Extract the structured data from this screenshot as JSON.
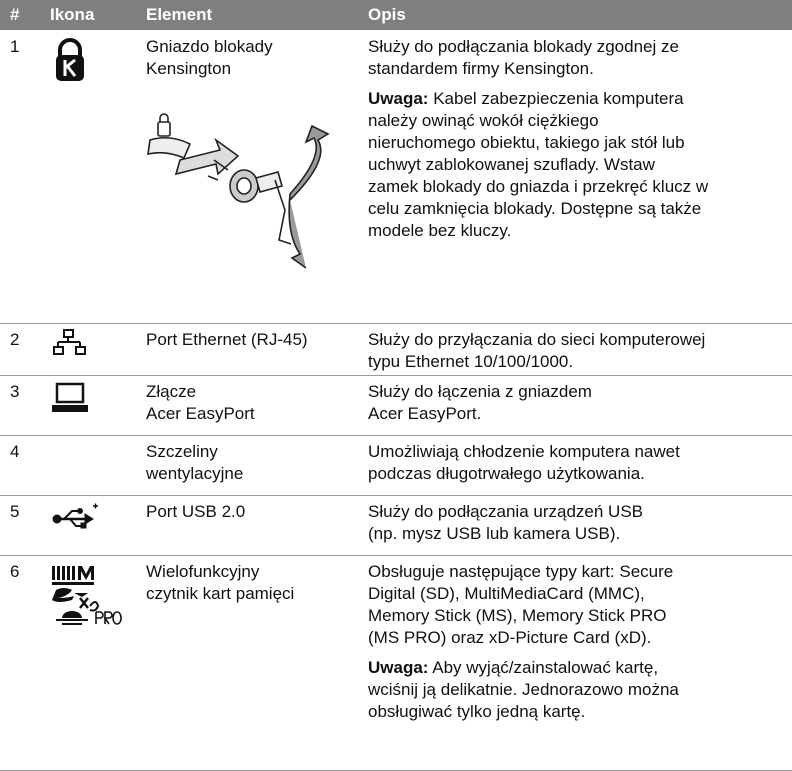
{
  "table": {
    "header": [
      "#",
      "Ikona",
      "Element",
      "Opis"
    ],
    "rows": [
      {
        "number": "1",
        "element": [
          "Gniazdo blokady",
          "Kensington"
        ],
        "description": [
          {
            "lines": [
              "Służy do podłączania blokady zgodnej ze",
              "standardem firmy Kensington."
            ]
          },
          {
            "label": "Uwaga:",
            "lines": [
              " Kabel zabezpieczenia komputera",
              "należy owinąć wokół ciężkiego",
              "nieruchomego obiektu, takiego jak stół lub",
              "uchwyt zablokowanej szuflady. Wstaw",
              "zamek blokady do gniazda i przekręć klucz w",
              "celu zamknięcia blokady. Dostępne są także",
              "modele bez kluczy."
            ]
          }
        ]
      },
      {
        "number": "2",
        "element": [
          "Port Ethernet (RJ-45)"
        ],
        "description": [
          {
            "lines": [
              "Służy do przyłączania do sieci komputerowej",
              "typu Ethernet 10/100/1000."
            ]
          }
        ]
      },
      {
        "number": "3",
        "element": [
          "Złącze",
          "Acer EasyPort"
        ],
        "description": [
          {
            "lines": [
              "Służy do łączenia z gniazdem",
              "Acer EasyPort."
            ]
          }
        ]
      },
      {
        "number": "4",
        "element": [
          "Szczeliny",
          "wentylacyjne"
        ],
        "description": [
          {
            "lines": [
              "Umożliwiają chłodzenie komputera nawet",
              "podczas długotrwałego użytkowania."
            ]
          }
        ]
      },
      {
        "number": "5",
        "element": [
          "Port USB 2.0"
        ],
        "description": [
          {
            "lines": [
              "Służy do podłączania urządzeń USB",
              "(np. mysz USB lub kamera USB)."
            ]
          }
        ]
      },
      {
        "number": "6",
        "element": [
          "Wielofunkcyjny",
          "czytnik kart pamięci"
        ],
        "description": [
          {
            "lines": [
              "Obsługuje następujące typy kart: Secure",
              "Digital (SD), MultiMediaCard (MMC),",
              "Memory Stick (MS), Memory Stick PRO",
              "(MS PRO) oraz xD-Picture Card (xD)."
            ]
          },
          {
            "label": "Uwaga:",
            "lines": [
              " Aby wyjąć/zainstalować kartę,",
              "wciśnij ją delikatnie. Jednorazowo można",
              "obsługiwać tylko jedną kartę."
            ]
          }
        ]
      }
    ]
  }
}
